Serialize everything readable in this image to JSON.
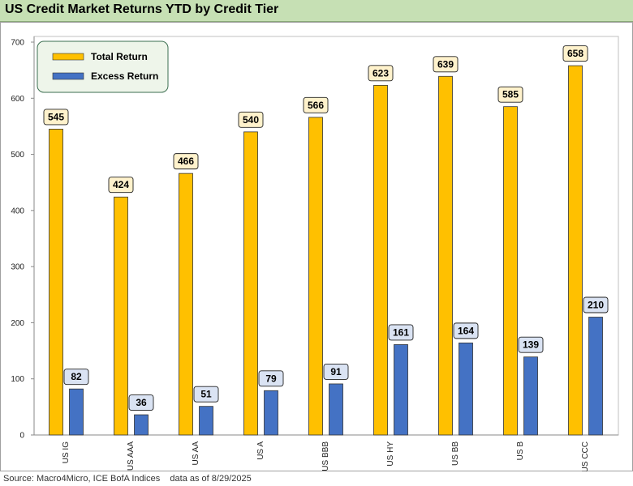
{
  "title": "US Credit Market Returns YTD by Credit Tier",
  "footer": "Source: Macro4Micro, ICE BofA Indices    data as of 8/29/2025",
  "chart_data": {
    "type": "bar",
    "title": "US Credit Market Returns YTD by Credit Tier",
    "categories": [
      "US IG",
      "US AAA",
      "US AA",
      "US A",
      "US BBB",
      "US HY",
      "US BB",
      "US B",
      "US CCC"
    ],
    "series": [
      {
        "name": "Total Return",
        "color": "#ffc000",
        "values": [
          545,
          424,
          466,
          540,
          566,
          623,
          639,
          585,
          658
        ]
      },
      {
        "name": "Excess Return",
        "color": "#4472c4",
        "values": [
          82,
          36,
          51,
          79,
          91,
          161,
          164,
          139,
          210
        ]
      }
    ],
    "yticks": [
      0,
      100,
      200,
      300,
      400,
      500,
      600,
      700
    ],
    "ylim": [
      0,
      700
    ],
    "xlabel": "",
    "ylabel": "",
    "grid": false,
    "legend": "top-left",
    "label_fill": {
      "Total Return": "#fff2cc",
      "Excess Return": "#dae3f3"
    }
  }
}
